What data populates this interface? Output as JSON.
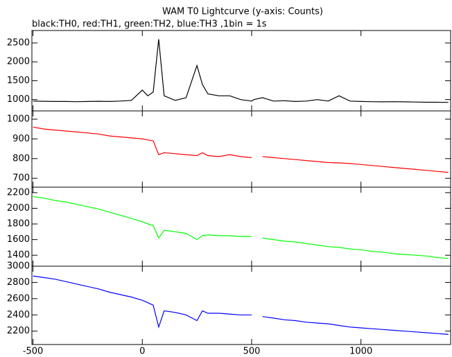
{
  "chart_data": {
    "type": "line",
    "title": "WAM T0 Lightcurve (y-axis: Counts)",
    "subtitle": "black:TH0, red:TH1, green:TH2, blue:TH3 ,1bin = 1s",
    "x": [
      -500,
      -450,
      -400,
      -350,
      -300,
      -250,
      -200,
      -150,
      -100,
      -50,
      0,
      25,
      50,
      75,
      100,
      150,
      200,
      250,
      275,
      300,
      350,
      400,
      450,
      500,
      510,
      550,
      600,
      650,
      700,
      750,
      800,
      850,
      900,
      950,
      1000,
      1050,
      1100,
      1150,
      1200,
      1250,
      1300,
      1350,
      1400
    ],
    "xlim": [
      -505,
      1410
    ],
    "xticks": [
      -500,
      0,
      500,
      1000
    ],
    "grid": false,
    "panels": [
      {
        "color": "#000000",
        "ylim": [
          700,
          2830
        ],
        "yticks": [
          1000,
          1500,
          2000,
          2500
        ],
        "values": [
          960,
          955,
          950,
          950,
          945,
          950,
          955,
          950,
          960,
          980,
          1250,
          1100,
          1200,
          2600,
          1100,
          980,
          1050,
          1900,
          1400,
          1150,
          1100,
          1100,
          1000,
          960,
          1000,
          1050,
          960,
          970,
          950,
          960,
          1000,
          960,
          1100,
          960,
          950,
          945,
          940,
          945,
          940,
          935,
          930,
          930,
          925
        ]
      },
      {
        "color": "#ff0000",
        "ylim": [
          655,
          1042
        ],
        "yticks": [
          700,
          800,
          900,
          1000
        ],
        "values": [
          960,
          950,
          945,
          940,
          935,
          930,
          925,
          915,
          910,
          905,
          900,
          895,
          890,
          820,
          830,
          825,
          820,
          815,
          830,
          815,
          810,
          820,
          810,
          805,
          null,
          810,
          805,
          800,
          795,
          790,
          785,
          780,
          778,
          775,
          770,
          765,
          760,
          755,
          750,
          745,
          740,
          735,
          730
        ]
      },
      {
        "color": "#00ff00",
        "ylim": [
          1260,
          2270
        ],
        "yticks": [
          1400,
          1600,
          1800,
          2000,
          2200
        ],
        "values": [
          2150,
          2130,
          2100,
          2080,
          2050,
          2020,
          1990,
          1950,
          1910,
          1870,
          1830,
          1800,
          1780,
          1620,
          1720,
          1700,
          1680,
          1600,
          1650,
          1660,
          1650,
          1650,
          1640,
          1640,
          null,
          1620,
          1600,
          1580,
          1570,
          1550,
          1530,
          1510,
          1500,
          1480,
          1470,
          1450,
          1440,
          1420,
          1410,
          1400,
          1390,
          1370,
          1360
        ]
      },
      {
        "color": "#0000ff",
        "ylim": [
          2035,
          3000
        ],
        "yticks": [
          2200,
          2400,
          2600,
          2800,
          3000
        ],
        "values": [
          2880,
          2860,
          2840,
          2810,
          2780,
          2750,
          2720,
          2680,
          2650,
          2620,
          2580,
          2550,
          2520,
          2250,
          2450,
          2430,
          2400,
          2330,
          2450,
          2420,
          2420,
          2410,
          2400,
          2400,
          null,
          2380,
          2360,
          2340,
          2330,
          2310,
          2300,
          2290,
          2270,
          2250,
          2240,
          2230,
          2220,
          2210,
          2200,
          2190,
          2180,
          2170,
          2160
        ]
      }
    ]
  }
}
